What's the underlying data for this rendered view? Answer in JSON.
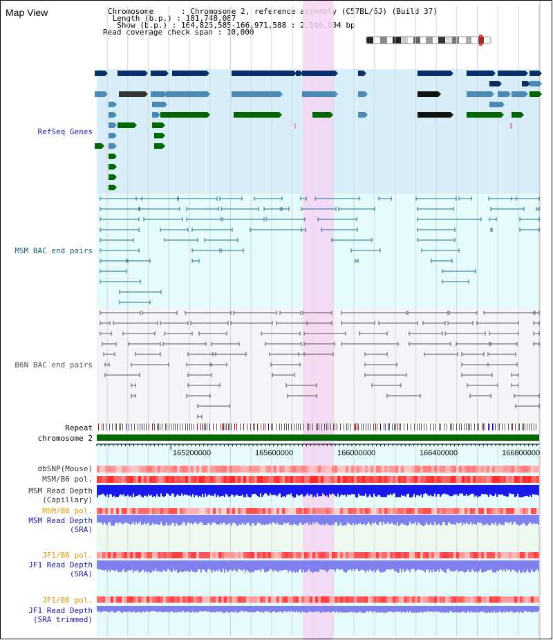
{
  "view": {
    "title": "Map View"
  },
  "header": {
    "chromosome": "Chromosome      : Chromosome 2, reference assembly (C57BL/6J) (Build 37)",
    "length": " Length (b.p.) : 181,748,087",
    "show": "  Show (b.p.) : 164,825,585-166,971,588 : 2,146,004 bp",
    "coverage": "Read coverage check span : 10,000"
  },
  "tracks": {
    "refseq": {
      "label": "RefSeq Genes",
      "color": "#1a1aaa"
    },
    "msm_bac": {
      "label": "MSM BAC end pairs",
      "color": "#1a5a7a"
    },
    "b6n_bac": {
      "label": "B6N BAC end pairs",
      "color": "#555555"
    },
    "repeat": {
      "label": "Repeat"
    },
    "chrom": {
      "label": "chromosome 2"
    },
    "dbsnp": {
      "label": "dbSNP(Mouse)"
    },
    "msm_pol": {
      "label": "MSM/B6 pol."
    },
    "msm_depth_cap": {
      "label": "MSM Read Depth\n(Capillary)"
    },
    "msm_pol2": {
      "label": "MSM/B6 pol.",
      "color": "#e69500"
    },
    "msm_depth_sra": {
      "label": "MSM Read Depth\n(SRA)"
    },
    "jf1_pol": {
      "label": "JF1/B6 pol.",
      "color": "#e69500"
    },
    "jf1_depth_sra": {
      "label": "JF1 Read Depth\n(SRA)"
    },
    "jf1_pol2": {
      "label": "JF1/B6 pol.",
      "color": "#e69500"
    },
    "jf1_depth_trim": {
      "label": "JF1 Read Depth\n(SRA trimmed)"
    }
  },
  "axis": {
    "ticks": [
      "165200000",
      "165600000",
      "166000000",
      "166400000",
      "166800000"
    ]
  },
  "colors": {
    "refseq_bg": "#d8eef8",
    "msm_bg": "#e6fbfb",
    "b6n_bg": "#f4f4f9",
    "highlight": "#f5d5f3",
    "gene_navy": "#0a2f66",
    "gene_steel": "#4a8ab5",
    "gene_green": "#006600",
    "msm_line": "#1a6a8a",
    "b6n_line": "#555555",
    "chrom": "#006600",
    "depth_blue": "#1a1aee",
    "depth_light": "#7f7fee"
  }
}
